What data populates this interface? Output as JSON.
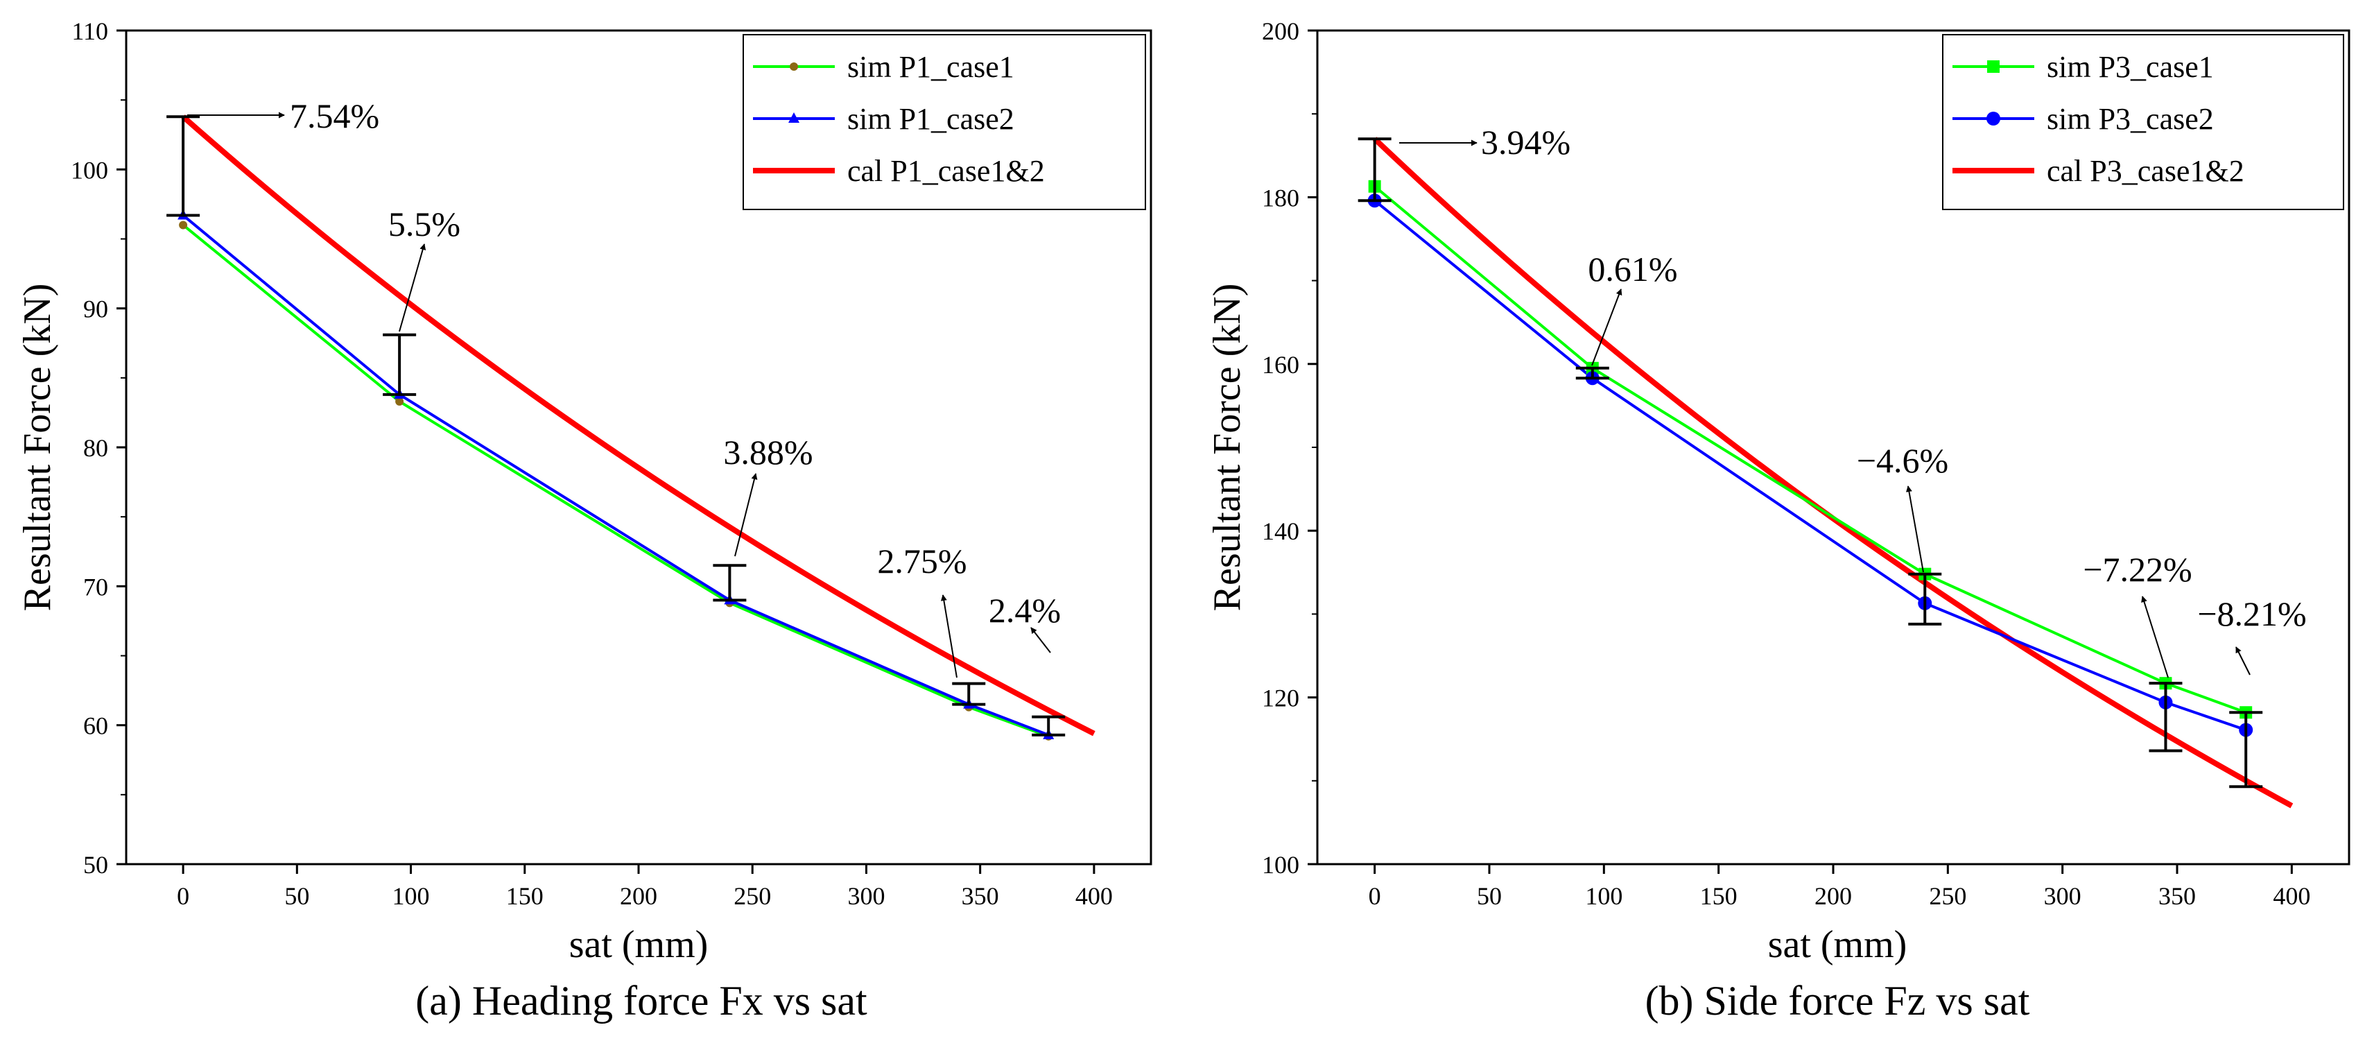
{
  "chart_data": [
    {
      "type": "line",
      "caption": "(a) Heading force Fx vs sat",
      "xlabel": "sat (mm)",
      "ylabel": "Resultant Force (kN)",
      "xlim": [
        -25,
        425
      ],
      "ylim": [
        50,
        110
      ],
      "xticks": [
        0,
        50,
        100,
        150,
        200,
        250,
        300,
        350,
        400
      ],
      "yticks": [
        50,
        60,
        70,
        80,
        90,
        100,
        110
      ],
      "grid": false,
      "legend_position": "top-right",
      "series": [
        {
          "name": "sim P1_case1",
          "color": "#00ff00",
          "marker": "circle",
          "marker_color": "#8b6914",
          "x": [
            0,
            95,
            240,
            345,
            380
          ],
          "y": [
            96.0,
            83.3,
            68.8,
            61.3,
            59.2
          ]
        },
        {
          "name": "sim P1_case2",
          "color": "#0000ff",
          "marker": "triangle",
          "marker_color": "#0000ff",
          "x": [
            0,
            95,
            240,
            345,
            380
          ],
          "y": [
            96.7,
            83.8,
            69.0,
            61.5,
            59.3
          ]
        },
        {
          "name": "cal P1_case1&2",
          "color": "#ff0000",
          "marker": "none",
          "marker_color": "#ff0000",
          "x": [
            0,
            95,
            240,
            345,
            380,
            400
          ],
          "y": [
            103.8,
            88.1,
            71.5,
            63.0,
            60.6,
            59.4
          ]
        }
      ],
      "annotations": [
        {
          "text": "7.54%",
          "x": 0,
          "y_low": 96.7,
          "y_high": 103.8
        },
        {
          "text": "5.5%",
          "x": 95,
          "y_low": 83.8,
          "y_high": 88.1
        },
        {
          "text": "3.88%",
          "x": 240,
          "y_low": 69.0,
          "y_high": 71.5
        },
        {
          "text": "2.75%",
          "x": 345,
          "y_low": 61.5,
          "y_high": 63.0
        },
        {
          "text": "2.4%",
          "x": 380,
          "y_low": 59.3,
          "y_high": 60.6
        }
      ]
    },
    {
      "type": "line",
      "caption": "(b) Side force Fz vs sat",
      "xlabel": "sat (mm)",
      "ylabel": "Resultant Force (kN)",
      "xlim": [
        -25,
        425
      ],
      "ylim": [
        100,
        200
      ],
      "xticks": [
        0,
        50,
        100,
        150,
        200,
        250,
        300,
        350,
        400
      ],
      "yticks": [
        100,
        120,
        140,
        160,
        180,
        200
      ],
      "grid": false,
      "legend_position": "top-right",
      "series": [
        {
          "name": "sim P3_case1",
          "color": "#00ff00",
          "marker": "square",
          "marker_color": "#00ff00",
          "x": [
            0,
            95,
            240,
            345,
            380
          ],
          "y": [
            181.3,
            159.5,
            134.8,
            121.7,
            118.2
          ]
        },
        {
          "name": "sim P3_case2",
          "color": "#0000ff",
          "marker": "circle",
          "marker_color": "#0000ff",
          "x": [
            0,
            95,
            240,
            345,
            380
          ],
          "y": [
            179.6,
            158.3,
            131.3,
            119.4,
            116.1
          ]
        },
        {
          "name": "cal P3_case1&2",
          "color": "#ff0000",
          "marker": "none",
          "marker_color": "#ff0000",
          "x": [
            0,
            95,
            240,
            345,
            380,
            400
          ],
          "y": [
            187.0,
            158.5,
            128.8,
            113.6,
            109.3,
            107.0
          ]
        }
      ],
      "annotations": [
        {
          "text": "3.94%",
          "x": 0,
          "y_low": 179.6,
          "y_high": 187.0
        },
        {
          "text": "0.61%",
          "x": 95,
          "y_low": 158.3,
          "y_high": 159.5
        },
        {
          "text": "−4.6%",
          "x": 240,
          "y_low": 128.8,
          "y_high": 134.8
        },
        {
          "text": "−7.22%",
          "x": 345,
          "y_low": 113.6,
          "y_high": 121.7
        },
        {
          "text": "−8.21%",
          "x": 380,
          "y_low": 109.3,
          "y_high": 118.2
        }
      ]
    }
  ]
}
